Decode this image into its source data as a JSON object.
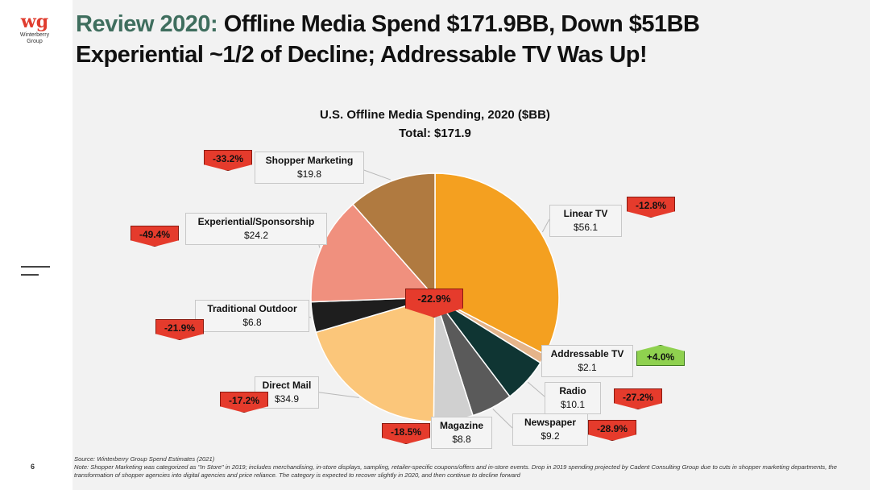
{
  "header": {
    "accent": "Review 2020:",
    "line1_rest": " Offline Media Spend $171.9BB, Down $51BB",
    "line2": "Experiential ~1/2 of Decline; Addressable TV Was Up!"
  },
  "logo": {
    "mark": "wg",
    "name1": "Winterberry",
    "name2": "Group"
  },
  "chart_data": {
    "type": "pie",
    "title": "U.S. Offline Media Spending, 2020 ($BB)",
    "subtitle": "Total: $171.9",
    "total_change": "-22.9%",
    "slices": [
      {
        "name": "Linear TV",
        "value": 56.1,
        "value_label": "$56.1",
        "change": "-12.8%",
        "direction": "down",
        "color": "#f4a020"
      },
      {
        "name": "Addressable TV",
        "value": 2.1,
        "value_label": "$2.1",
        "change": "+4.0%",
        "direction": "up",
        "color": "#e4b48a"
      },
      {
        "name": "Radio",
        "value": 10.1,
        "value_label": "$10.1",
        "change": "-27.2%",
        "direction": "down",
        "color": "#0f3533"
      },
      {
        "name": "Newspaper",
        "value": 9.2,
        "value_label": "$9.2",
        "change": "-28.9%",
        "direction": "down",
        "color": "#5a5a5a"
      },
      {
        "name": "Magazine",
        "value": 8.8,
        "value_label": "$8.8",
        "change": "-18.5%",
        "direction": "down",
        "color": "#d0d0d0"
      },
      {
        "name": "Direct Mail",
        "value": 34.9,
        "value_label": "$34.9",
        "change": "-17.2%",
        "direction": "down",
        "color": "#fbc67a"
      },
      {
        "name": "Traditional Outdoor",
        "value": 6.8,
        "value_label": "$6.8",
        "change": "-21.9%",
        "direction": "down",
        "color": "#1e1e1e"
      },
      {
        "name": "Experiential/Sponsorship",
        "value": 24.2,
        "value_label": "$24.2",
        "change": "-49.4%",
        "direction": "down",
        "color": "#f0907e"
      },
      {
        "name": "Shopper Marketing",
        "value": 19.8,
        "value_label": "$19.8",
        "change": "-33.2%",
        "direction": "down",
        "color": "#b07a40"
      }
    ]
  },
  "footer": {
    "source": "Source: Winterberry Group Spend Estimates (2021)",
    "note": "Note: Shopper Marketing was categorized as \"In Store\" in 2019; includes merchandising, in-store displays, sampling, retailer-specific coupons/offers and in-store events. Drop in 2019 spending projected by Cadent Consulting Group due to cuts in shopper marketing departments, the transformation of shopper agencies into digital agencies and price reliance. The category is expected to recover slightly in 2020, and then continue to decline forward"
  },
  "page_number": "6"
}
